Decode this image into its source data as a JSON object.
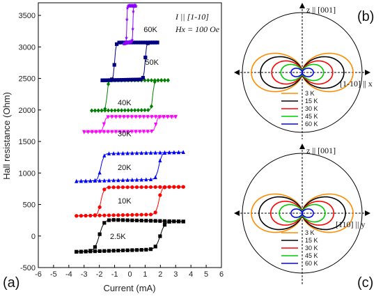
{
  "chart_data": [
    {
      "type": "line",
      "panel_label": "(a)",
      "xlabel": "Current (mA)",
      "ylabel": "Hall resistance (Ohm)",
      "xlim": [
        -6,
        6
      ],
      "ylim": [
        -500,
        3700
      ],
      "x_ticks": [
        -6,
        -5,
        -4,
        -3,
        -2,
        -1,
        0,
        1,
        2,
        3,
        4,
        5,
        6
      ],
      "x_tick_labels": [
        "-6",
        "-5",
        "-4",
        "-3",
        "-2",
        "-1",
        "0",
        "1",
        "2",
        "3",
        "4",
        "5",
        "6"
      ],
      "y_ticks": [
        -500,
        0,
        500,
        1000,
        1500,
        2000,
        2500,
        3000,
        3500
      ],
      "y_tick_labels": [
        "-500",
        "0",
        "500",
        "1000",
        "1500",
        "2000",
        "2500",
        "3000",
        "3500"
      ],
      "annotation_line1": "I || [1-10]",
      "annotation_line2": "Hx = 100 Oe",
      "series": [
        {
          "label": "2.5K",
          "label_at": [
            -1.3,
            0
          ],
          "color": "#000000",
          "marker": "square",
          "imax": 3.5,
          "switch_pos": 2.0,
          "switch_neg": -2.0,
          "width": 0.5,
          "low_left": -250,
          "low_right": -200,
          "high_left": 270,
          "high_right": 230
        },
        {
          "label": "10K",
          "label_at": [
            -0.8,
            560
          ],
          "color": "#ff0000",
          "marker": "circle",
          "imax": 3.5,
          "switch_pos": 1.9,
          "switch_neg": -1.9,
          "width": 0.3,
          "low_left": 320,
          "low_right": 350,
          "high_left": 770,
          "high_right": 780
        },
        {
          "label": "20K",
          "label_at": [
            -0.8,
            1090
          ],
          "color": "#0000ff",
          "marker": "triangle",
          "imax": 3.5,
          "switch_pos": 1.9,
          "switch_neg": -1.9,
          "width": 0.3,
          "low_left": 870,
          "low_right": 910,
          "high_left": 1300,
          "high_right": 1330
        },
        {
          "label": "30K",
          "label_at": [
            -0.8,
            1630
          ],
          "color": "#ff00ff",
          "marker": "triangle-down",
          "imax": 3.0,
          "switch_pos": 1.7,
          "switch_neg": -1.7,
          "width": 0.2,
          "low_left": 1650,
          "low_right": 1660,
          "high_left": 1890,
          "high_right": 1890
        },
        {
          "label": "40K",
          "label_at": [
            -0.8,
            2120
          ],
          "color": "#008000",
          "marker": "diamond",
          "imax": 2.5,
          "switch_pos": 1.5,
          "switch_neg": -1.5,
          "width": 0.15,
          "low_left": 1990,
          "low_right": 2000,
          "high_left": 2470,
          "high_right": 2470
        },
        {
          "label": "50K",
          "label_at": [
            1.0,
            2760
          ],
          "color": "#000080",
          "marker": "square",
          "imax": 1.8,
          "switch_pos": 1.0,
          "switch_neg": -1.0,
          "width": 0.15,
          "low_left": 2470,
          "low_right": 2490,
          "high_left": 3070,
          "high_right": 3070
        },
        {
          "label": "60K",
          "label_at": [
            0.9,
            3280
          ],
          "color": "#8b00ff",
          "marker": "star",
          "imax": 0.4,
          "switch_pos": 0.2,
          "switch_neg": -0.2,
          "width": 0.05,
          "low_left": 3050,
          "low_right": 3100,
          "high_left": 3650,
          "high_right": 3650
        }
      ]
    },
    {
      "type": "polar",
      "panel_label": "(b)",
      "axis_label_top": "z || [001]",
      "axis_label_right": "[1-10] || x",
      "legend": [
        "3 K",
        "15 K",
        "30 K",
        "45 K",
        "60 K"
      ],
      "series": [
        {
          "name": "3 K",
          "color": "#ff8c00",
          "amplitude": 1.0
        },
        {
          "name": "15 K",
          "color": "#000000",
          "amplitude": 0.82
        },
        {
          "name": "30 K",
          "color": "#ff0000",
          "amplitude": 0.6
        },
        {
          "name": "45 K",
          "color": "#00cc00",
          "amplitude": 0.42
        },
        {
          "name": "60 K",
          "color": "#0000ff",
          "amplitude": 0.22
        }
      ]
    },
    {
      "type": "polar",
      "panel_label": "(c)",
      "axis_label_top": "z || [001]",
      "axis_label_right": "[110] || y",
      "legend": [
        "3 K",
        "15 K",
        "30 K",
        "45 K",
        "60 K"
      ],
      "series": [
        {
          "name": "3 K",
          "color": "#ff8c00",
          "amplitude": 1.0
        },
        {
          "name": "15 K",
          "color": "#000000",
          "amplitude": 0.85
        },
        {
          "name": "30 K",
          "color": "#ff0000",
          "amplitude": 0.62
        },
        {
          "name": "45 K",
          "color": "#00cc00",
          "amplitude": 0.45
        },
        {
          "name": "60 K",
          "color": "#0000ff",
          "amplitude": 0.22
        }
      ]
    }
  ]
}
